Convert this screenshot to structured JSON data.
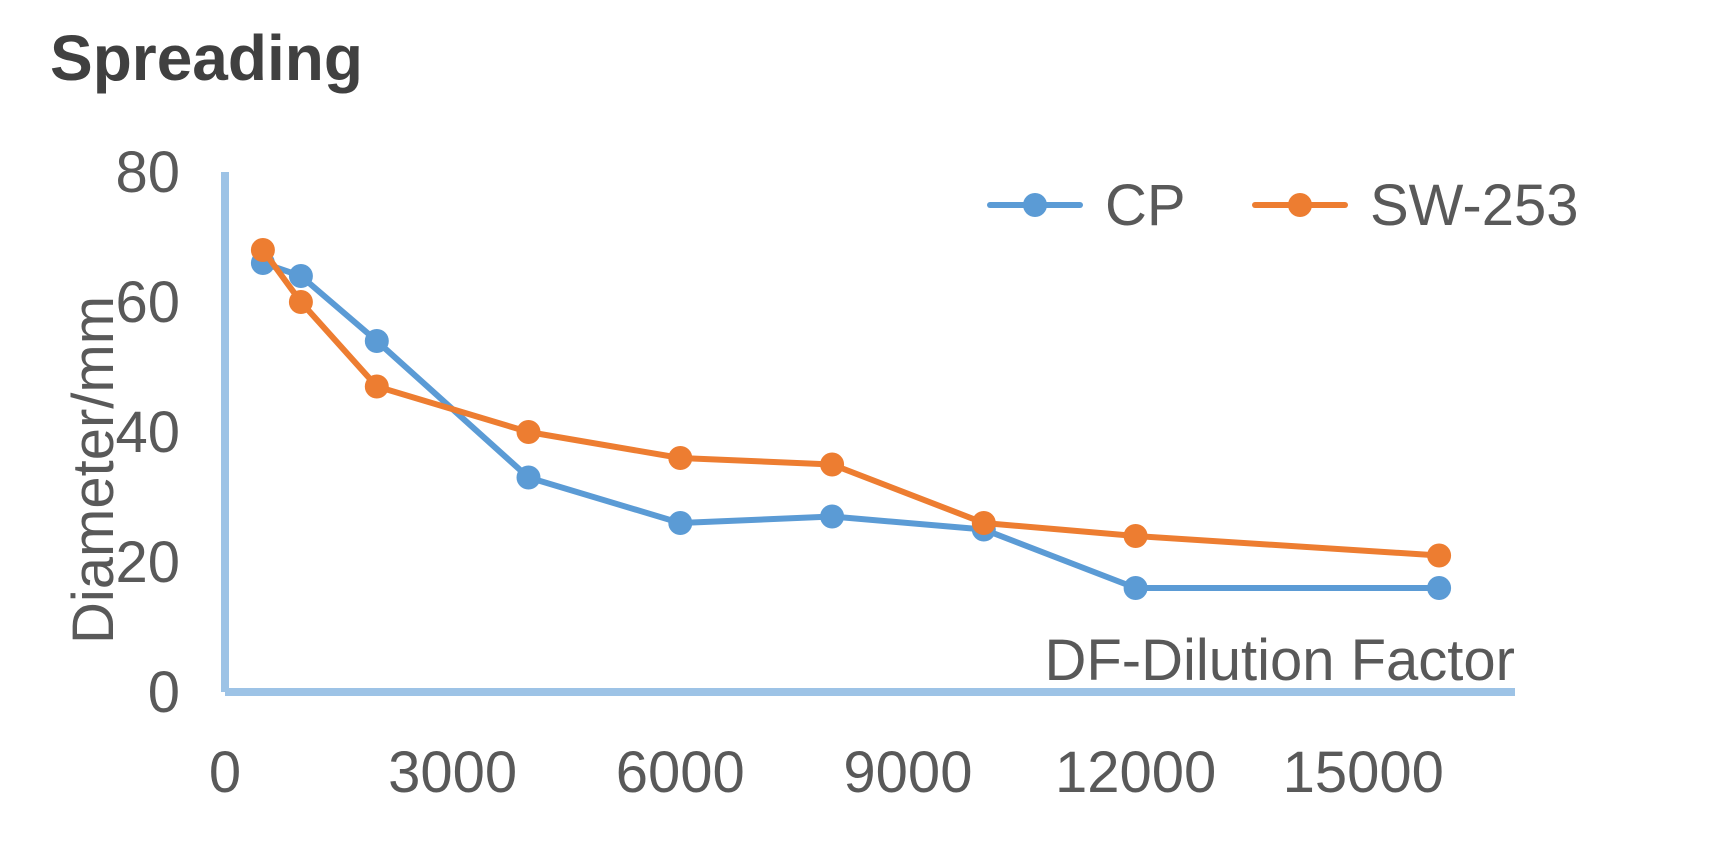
{
  "chart_data": {
    "type": "line",
    "title": "Spreading",
    "xlabel": "DF-Dilution Factor",
    "ylabel": "Diameter/mm",
    "xlim": [
      0,
      17000
    ],
    "ylim": [
      0,
      80
    ],
    "x_ticks": [
      0,
      3000,
      6000,
      9000,
      12000,
      15000
    ],
    "y_ticks": [
      0,
      20,
      40,
      60,
      80
    ],
    "grid": false,
    "legend_position": "top-right",
    "series": [
      {
        "name": "CP",
        "color": "#5B9BD5",
        "points": [
          {
            "x": 500,
            "y": 66
          },
          {
            "x": 1000,
            "y": 64
          },
          {
            "x": 2000,
            "y": 54
          },
          {
            "x": 4000,
            "y": 33
          },
          {
            "x": 6000,
            "y": 26
          },
          {
            "x": 8000,
            "y": 27
          },
          {
            "x": 10000,
            "y": 25
          },
          {
            "x": 12000,
            "y": 16
          },
          {
            "x": 16000,
            "y": 16
          }
        ]
      },
      {
        "name": "SW-253",
        "color": "#ED7D31",
        "points": [
          {
            "x": 500,
            "y": 68
          },
          {
            "x": 1000,
            "y": 60
          },
          {
            "x": 2000,
            "y": 47
          },
          {
            "x": 4000,
            "y": 40
          },
          {
            "x": 6000,
            "y": 36
          },
          {
            "x": 8000,
            "y": 35
          },
          {
            "x": 10000,
            "y": 26
          },
          {
            "x": 12000,
            "y": 24
          },
          {
            "x": 16000,
            "y": 21
          }
        ]
      }
    ],
    "axis_color": "#9DC3E6",
    "text_color": "#595959",
    "title_color": "#404040"
  }
}
